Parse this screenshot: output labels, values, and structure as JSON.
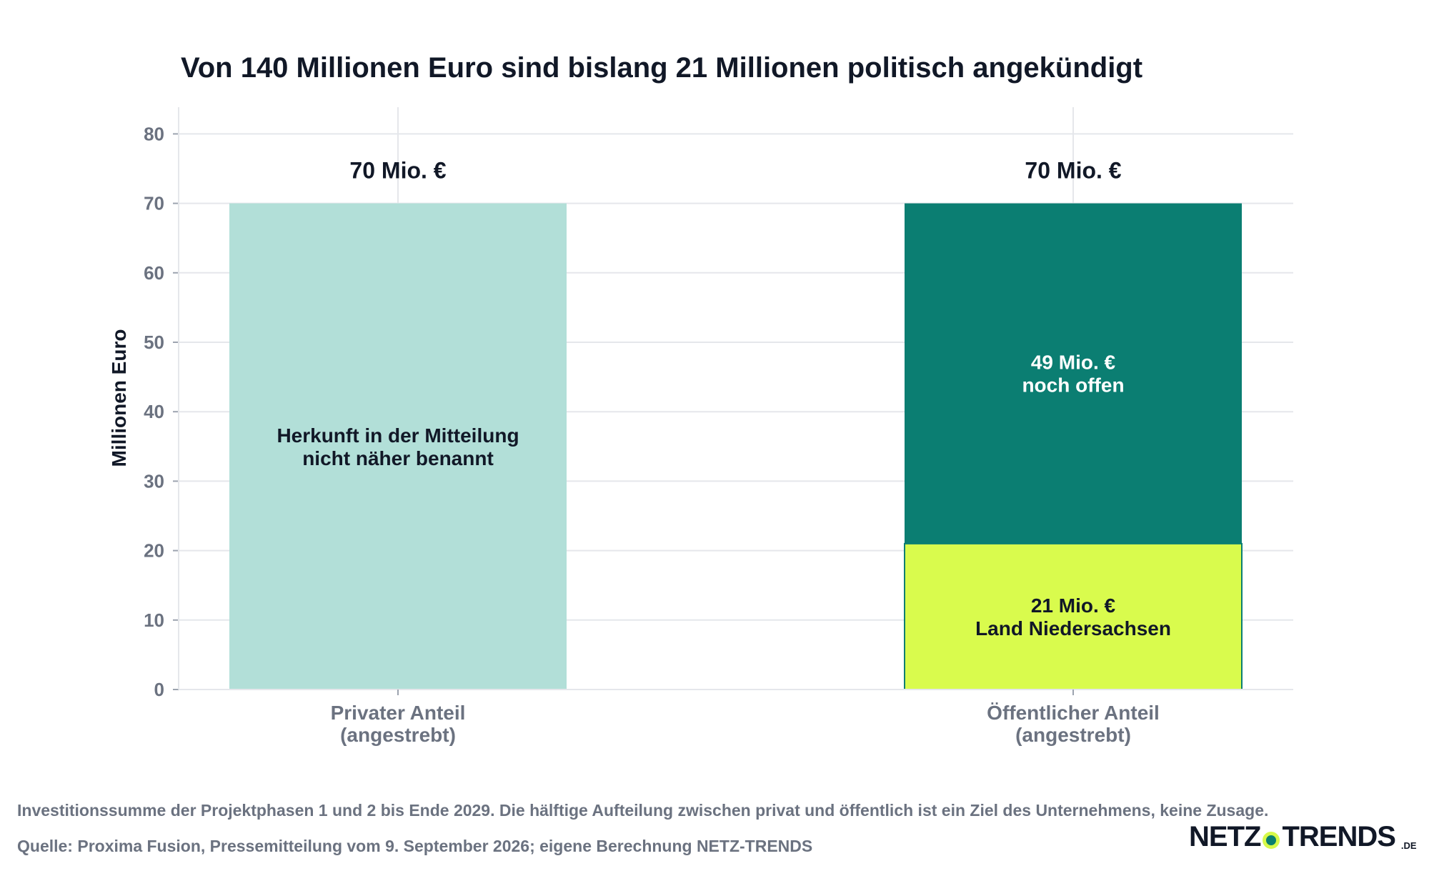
{
  "chart_data": {
    "type": "bar",
    "stacked": true,
    "title": "Von 140 Millionen Euro sind bislang 21 Millionen politisch angekündigt",
    "ylabel": "Millionen Euro",
    "xlabel": "",
    "ylim": [
      0,
      84
    ],
    "yticks": [
      0,
      10,
      20,
      30,
      40,
      50,
      60,
      70,
      80
    ],
    "grid": true,
    "categories": [
      [
        "Privater Anteil",
        "(angestrebt)"
      ],
      [
        "Öffentlicher Anteil",
        "(angestrebt)"
      ]
    ],
    "totals": [
      {
        "value": 70,
        "label": "70 Mio. €"
      },
      {
        "value": 70,
        "label": "70 Mio. €"
      }
    ],
    "segments": [
      {
        "category": 0,
        "base": 0,
        "value": 70,
        "color": "#b2dfd8",
        "text_color": "#111827",
        "label": [
          "Herkunft in der Mitteilung",
          "nicht näher benannt"
        ]
      },
      {
        "category": 1,
        "base": 0,
        "value": 21,
        "color": "#d9fb4d",
        "edge_color": "#0b7e72",
        "text_color": "#111827",
        "label": [
          "21 Mio. €",
          "Land Niedersachsen"
        ]
      },
      {
        "category": 1,
        "base": 21,
        "value": 49,
        "color": "#0b7e72",
        "text_color": "#ffffff",
        "label": [
          "49 Mio. €",
          "noch offen"
        ]
      }
    ]
  },
  "footer": {
    "note": "Investitionssumme der Projektphasen 1 und 2 bis Ende 2029. Die hälftige Aufteilung zwischen privat und öffentlich ist ein Ziel des Unternehmens, keine Zusage.",
    "source": "Quelle: Proxima Fusion, Pressemitteilung vom 9. September 2026; eigene Berechnung NETZ-TRENDS"
  },
  "logo": {
    "left": "NETZ",
    "right": "TRENDS",
    "suffix": ".DE",
    "dot_color": "#0a7f6f",
    "ring_color": "#d7f94a"
  },
  "colors": {
    "grid": "#e5e7eb",
    "axis": "#9ca3af",
    "tick_text": "#6b7280"
  }
}
